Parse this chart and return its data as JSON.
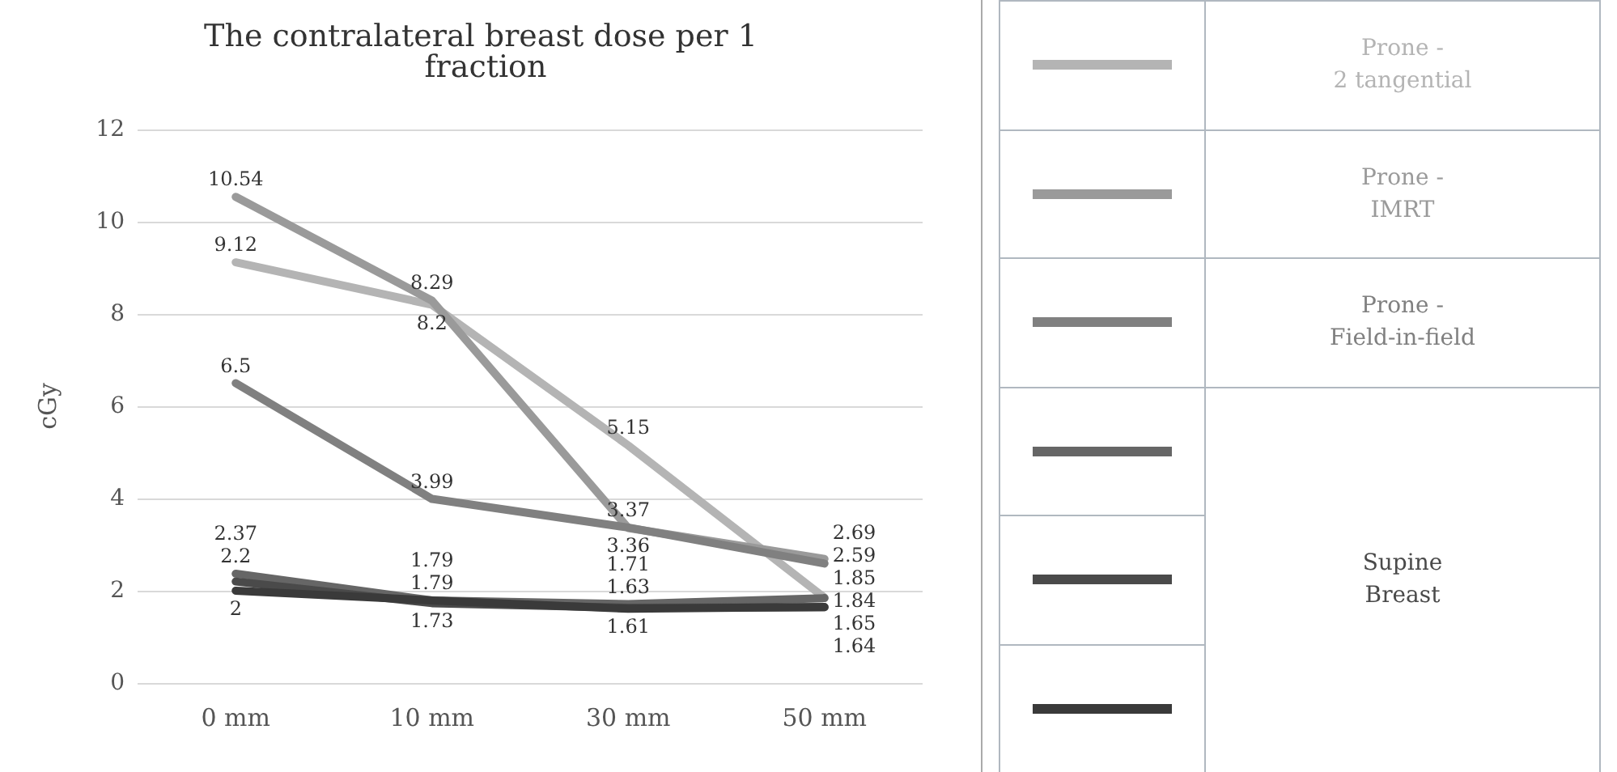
{
  "chart_data": {
    "type": "line",
    "title": "The contralateral breast dose per 1 fraction",
    "ylabel": "cGy",
    "categories": [
      "0 mm",
      "10 mm",
      "30 mm",
      "50 mm"
    ],
    "series": [
      {
        "name": "Prone -\n2 tangential",
        "color": "#b4b4b4",
        "values": [
          9.12,
          8.2,
          5.15,
          1.85
        ]
      },
      {
        "name": "Prone -\nIMRT",
        "color": "#9a9a9a",
        "values": [
          10.54,
          8.29,
          3.36,
          2.69
        ]
      },
      {
        "name": "Prone -\nField-in-field",
        "color": "#808080",
        "values": [
          6.5,
          3.99,
          3.37,
          2.59
        ]
      },
      {
        "color": "#666666",
        "values": [
          2.37,
          1.79,
          1.71,
          1.84
        ]
      },
      {
        "name": "Supine\nBreast",
        "color": "#4a4a4a",
        "values": [
          2.2,
          1.73,
          1.63,
          1.64
        ]
      },
      {
        "color": "#3a3a3a",
        "values": [
          2,
          1.79,
          1.61,
          1.65
        ]
      }
    ],
    "ylim": [
      0,
      12
    ],
    "yticks": [
      0,
      2,
      4,
      6,
      8,
      10,
      12
    ],
    "grid": "y",
    "legend": "right",
    "marker": "none",
    "line_style": "solid",
    "data_labels": true
  }
}
